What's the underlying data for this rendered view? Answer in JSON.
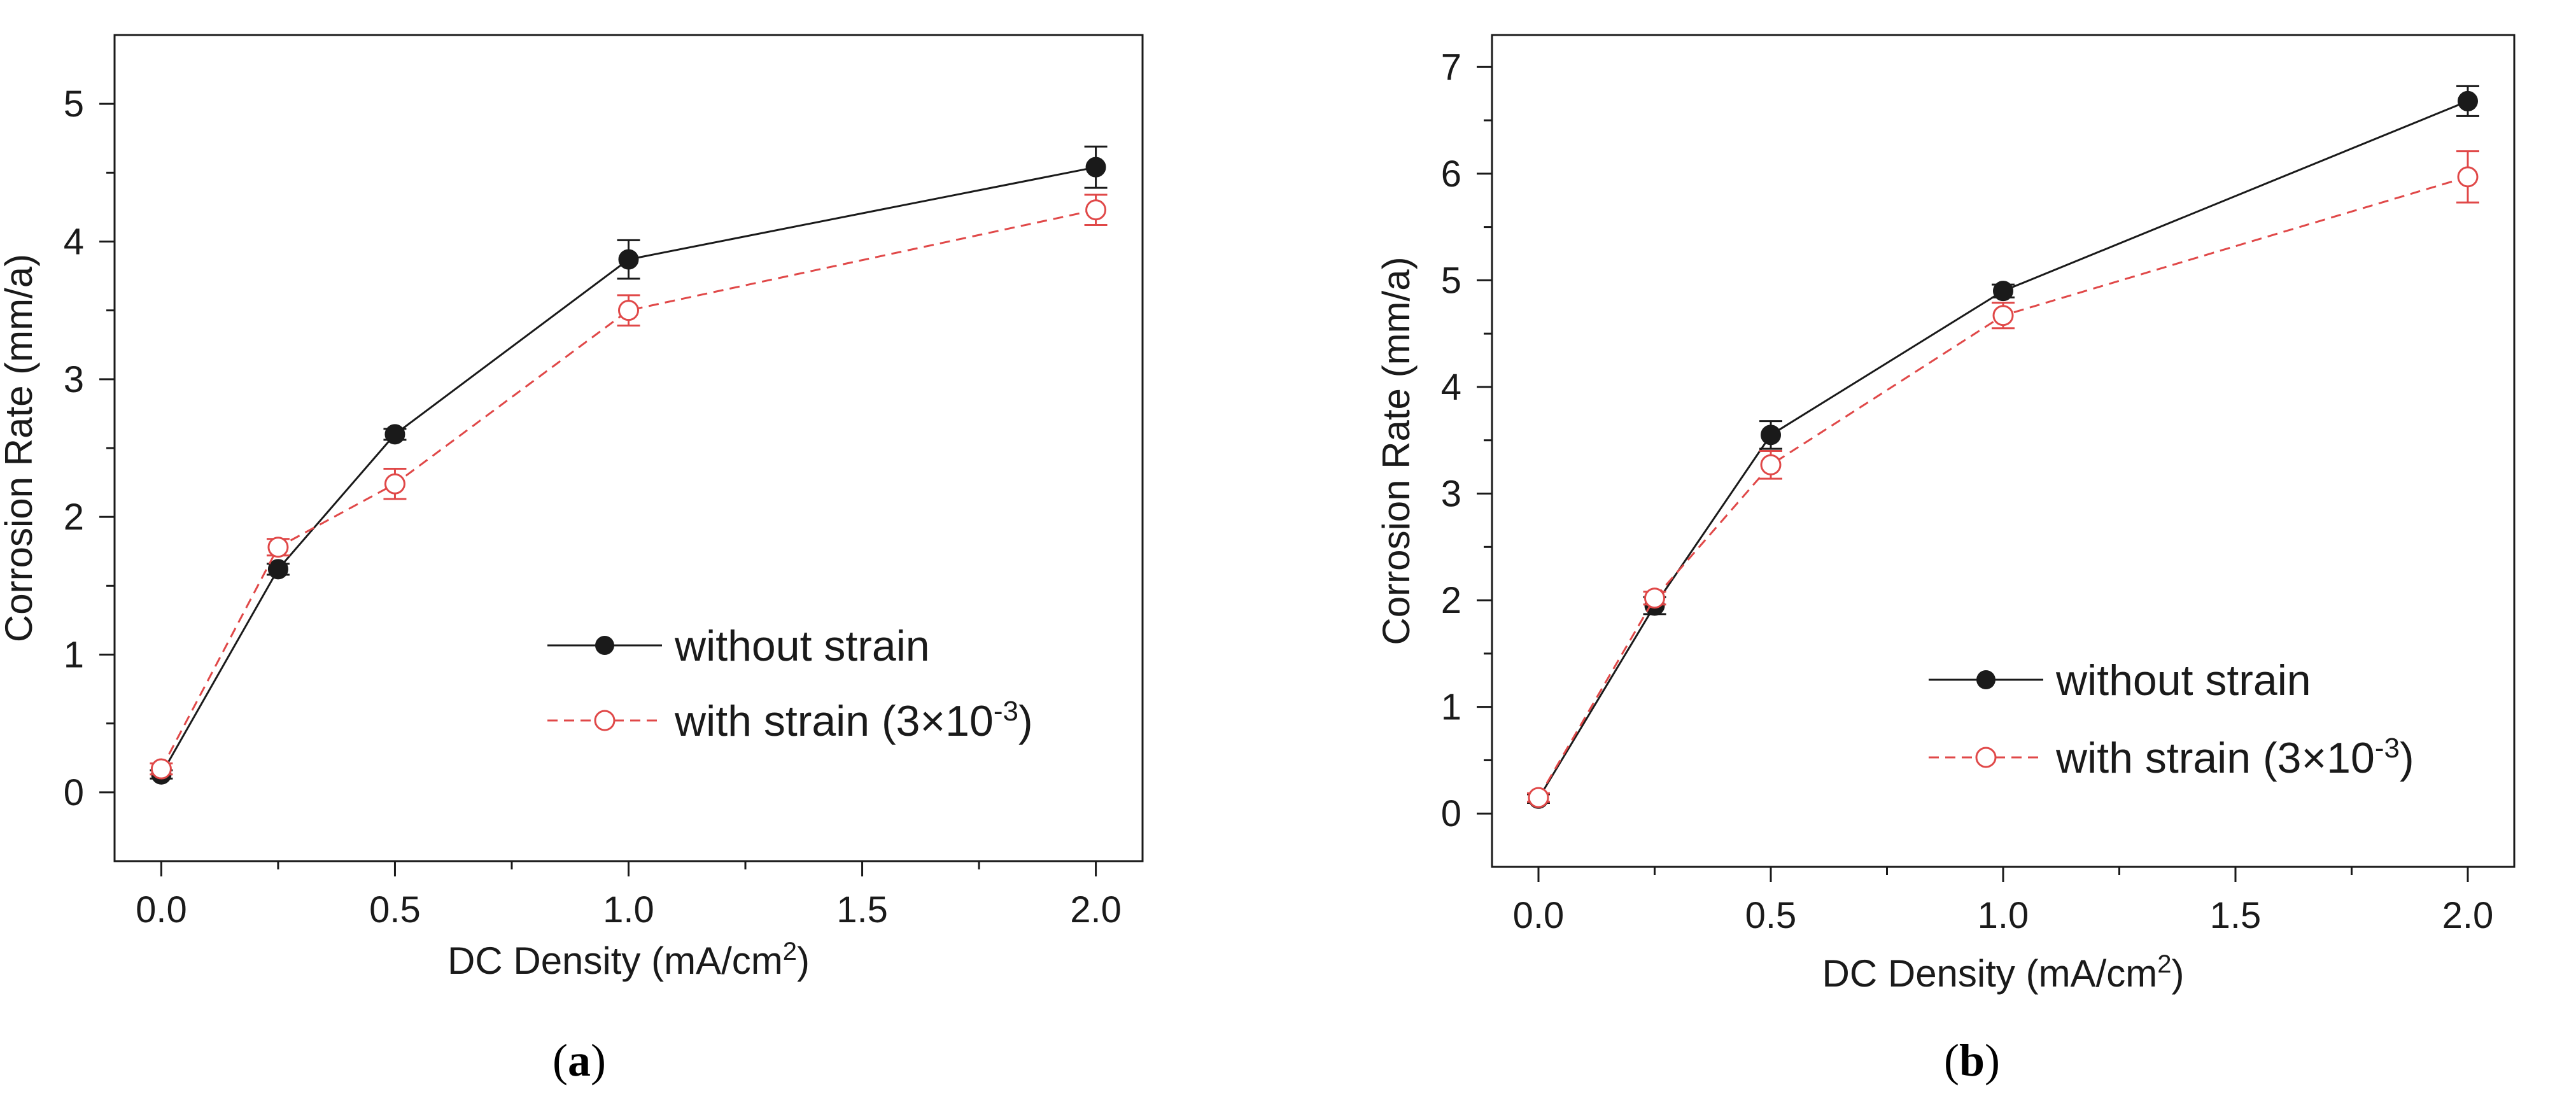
{
  "colors": {
    "without_strain": "#1a1a1a",
    "with_strain": "#e04848",
    "axis": "#1a1a1a"
  },
  "chart_data": [
    {
      "type": "line",
      "panel_label": "a",
      "panel_open": "(",
      "panel_close": ")",
      "xlabel": "DC Density (mA/cm",
      "xlabel_sup": "2",
      "xlabel_tail": ")",
      "ylabel": "Corrosion Rate (mm/a)",
      "xlim": [
        -0.1,
        2.1
      ],
      "ylim": [
        -0.5,
        5.5
      ],
      "xticks": [
        0.0,
        0.5,
        1.0,
        1.5,
        2.0
      ],
      "xtick_labels": [
        "0.0",
        "0.5",
        "1.0",
        "1.5",
        "2.0"
      ],
      "yticks": [
        0,
        1,
        2,
        3,
        4,
        5
      ],
      "ytick_labels": [
        "0",
        "1",
        "2",
        "3",
        "4",
        "5"
      ],
      "legend_position": "bottom-right",
      "series": [
        {
          "name": "without strain",
          "style": "solid",
          "marker": "filled-circle",
          "x": [
            0.0,
            0.25,
            0.5,
            1.0,
            2.0
          ],
          "y": [
            0.13,
            1.62,
            2.6,
            3.87,
            4.54
          ],
          "err": [
            0.03,
            0.04,
            0.04,
            0.14,
            0.15
          ]
        },
        {
          "name": "with strain (3×10",
          "name_sup": "-3",
          "name_tail": ")",
          "style": "dashed",
          "marker": "open-circle",
          "x": [
            0.0,
            0.25,
            0.5,
            1.0,
            2.0
          ],
          "y": [
            0.17,
            1.78,
            2.24,
            3.5,
            4.23
          ],
          "err": [
            0.04,
            0.06,
            0.11,
            0.11,
            0.11
          ]
        }
      ]
    },
    {
      "type": "line",
      "panel_label": "b",
      "panel_open": "(",
      "panel_close": ")",
      "xlabel": "DC Density (mA/cm",
      "xlabel_sup": "2",
      "xlabel_tail": ")",
      "ylabel": "Corrosion Rate (mm/a)",
      "xlim": [
        -0.1,
        2.1
      ],
      "ylim": [
        -0.5,
        7.3
      ],
      "xticks": [
        0.0,
        0.5,
        1.0,
        1.5,
        2.0
      ],
      "xtick_labels": [
        "0.0",
        "0.5",
        "1.0",
        "1.5",
        "2.0"
      ],
      "yticks": [
        0,
        1,
        2,
        3,
        4,
        5,
        6,
        7
      ],
      "ytick_labels": [
        "0",
        "1",
        "2",
        "3",
        "4",
        "5",
        "6",
        "7"
      ],
      "legend_position": "bottom-right",
      "series": [
        {
          "name": "without strain",
          "style": "solid",
          "marker": "filled-circle",
          "x": [
            0.0,
            0.25,
            0.5,
            1.0,
            2.0
          ],
          "y": [
            0.14,
            1.95,
            3.55,
            4.9,
            6.68
          ],
          "err": [
            0.04,
            0.08,
            0.13,
            0.06,
            0.14
          ]
        },
        {
          "name": "with strain (3×10",
          "name_sup": "-3",
          "name_tail": ")",
          "style": "dashed",
          "marker": "open-circle",
          "x": [
            0.0,
            0.25,
            0.5,
            1.0,
            2.0
          ],
          "y": [
            0.15,
            2.02,
            3.27,
            4.67,
            5.97
          ],
          "err": [
            0.04,
            0.06,
            0.13,
            0.12,
            0.24
          ]
        }
      ]
    }
  ]
}
